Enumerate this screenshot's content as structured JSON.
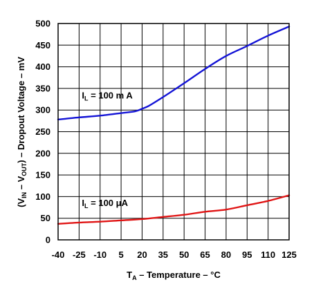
{
  "chart_data": {
    "type": "line",
    "title": "",
    "xlabel": {
      "main": "T",
      "sub": "A",
      "rest": " – Temperature – °C"
    },
    "ylabel": {
      "p1": "(V",
      "s1": "IN",
      "p2": " – V",
      "s2": "OUT",
      "p3": ") – Dropout Voltage – mV"
    },
    "x_ticks": [
      -40,
      -25,
      -10,
      5,
      20,
      35,
      50,
      65,
      80,
      95,
      110,
      125
    ],
    "y_ticks": [
      0,
      50,
      100,
      150,
      200,
      250,
      300,
      350,
      400,
      450,
      500
    ],
    "xlim": [
      -40,
      125
    ],
    "ylim": [
      0,
      500
    ],
    "grid": true,
    "series": [
      {
        "name": "IL = 100 mA",
        "color": "#1414d6",
        "x": [
          -40,
          -25,
          -10,
          5,
          15,
          20,
          25,
          35,
          50,
          65,
          80,
          95,
          110,
          125
        ],
        "y": [
          278,
          283,
          287,
          293,
          297,
          303,
          310,
          330,
          362,
          395,
          425,
          448,
          472,
          493
        ]
      },
      {
        "name": "IL = 100 μA",
        "color": "#e01414",
        "x": [
          -40,
          -25,
          -10,
          5,
          20,
          35,
          50,
          65,
          80,
          95,
          110,
          125
        ],
        "y": [
          37,
          40,
          42,
          45,
          48,
          53,
          58,
          65,
          70,
          80,
          90,
          103
        ]
      }
    ],
    "annotations": [
      {
        "main": "I",
        "sub": "L",
        "rest": " = 100 m A",
        "series": 0,
        "at_x": -23,
        "at_y": 327
      },
      {
        "main": "I",
        "sub": "L",
        "rest": " = 100 μA",
        "series": 1,
        "at_x": -23,
        "at_y": 78
      }
    ]
  }
}
